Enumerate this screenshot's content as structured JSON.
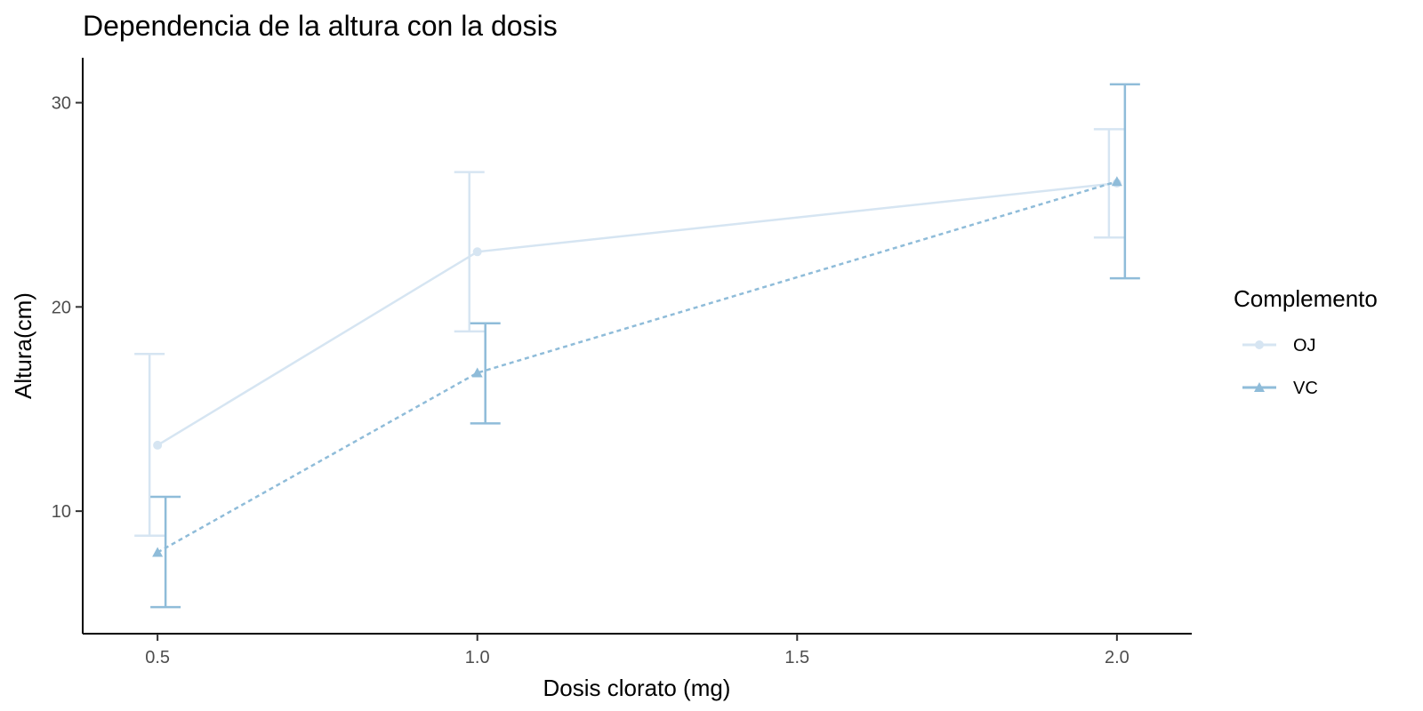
{
  "chart_data": {
    "type": "line",
    "title": "Dependencia de la altura con la dosis",
    "xlabel": "Dosis clorato (mg)",
    "ylabel": "Altura(cm)",
    "x_ticks": [
      0.5,
      1.0,
      1.5,
      2.0
    ],
    "x_tick_labels": [
      "0.5",
      "1.0",
      "1.5",
      "2.0"
    ],
    "y_ticks": [
      10,
      20,
      30
    ],
    "y_tick_labels": [
      "10",
      "20",
      "30"
    ],
    "xlim": [
      0.383,
      2.117
    ],
    "ylim": [
      4.0,
      32.2
    ],
    "grid": false,
    "legend": {
      "title": "Complemento",
      "position": "right"
    },
    "series": [
      {
        "name": "OJ",
        "color": "#d6e5f2",
        "marker": "circle",
        "line": "solid",
        "dodge": -0.0125,
        "points": [
          {
            "x": 0.5,
            "y": 13.23,
            "ymin": 8.8,
            "ymax": 17.7
          },
          {
            "x": 1.0,
            "y": 22.7,
            "ymin": 18.8,
            "ymax": 26.6
          },
          {
            "x": 2.0,
            "y": 26.06,
            "ymin": 23.4,
            "ymax": 28.7
          }
        ]
      },
      {
        "name": "VC",
        "color": "#8fbcd9",
        "marker": "triangle",
        "line": "dashed",
        "dodge": 0.0125,
        "points": [
          {
            "x": 0.5,
            "y": 7.98,
            "ymin": 5.3,
            "ymax": 10.7
          },
          {
            "x": 1.0,
            "y": 16.77,
            "ymin": 14.3,
            "ymax": 19.2
          },
          {
            "x": 2.0,
            "y": 26.14,
            "ymin": 21.4,
            "ymax": 30.9
          }
        ]
      }
    ]
  }
}
